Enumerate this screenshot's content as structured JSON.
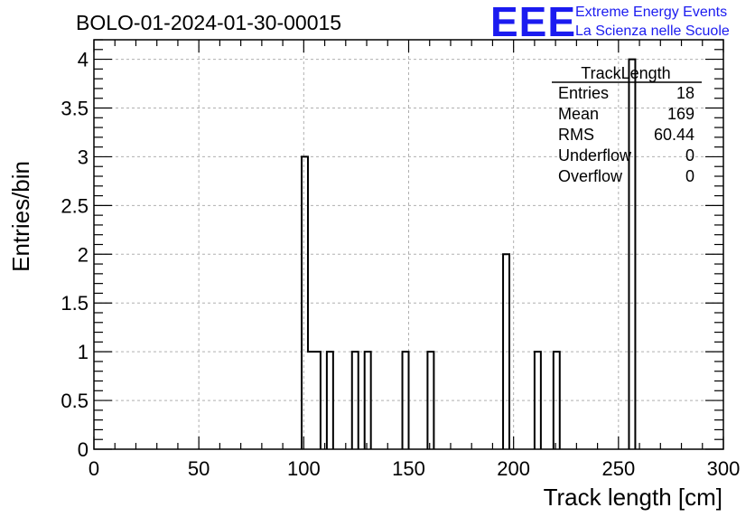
{
  "chart_data": {
    "type": "bar",
    "title": "BOLO-01-2024-01-30-00015",
    "xlabel": "Track length [cm]",
    "ylabel": "Entries/bin",
    "xlim": [
      0,
      300
    ],
    "ylim": [
      0,
      4.2
    ],
    "x_ticks": [
      "0",
      "50",
      "100",
      "150",
      "200",
      "250",
      "300"
    ],
    "y_ticks": [
      "0",
      "0.5",
      "1",
      "1.5",
      "2",
      "2.5",
      "3",
      "3.5",
      "4"
    ],
    "grid": true,
    "bin_width": 3,
    "bins": [
      {
        "x": 99,
        "value": 3
      },
      {
        "x": 102,
        "value": 1
      },
      {
        "x": 105,
        "value": 1
      },
      {
        "x": 111,
        "value": 1
      },
      {
        "x": 123,
        "value": 1
      },
      {
        "x": 129,
        "value": 1
      },
      {
        "x": 147,
        "value": 1
      },
      {
        "x": 159,
        "value": 1
      },
      {
        "x": 195,
        "value": 2
      },
      {
        "x": 210,
        "value": 1
      },
      {
        "x": 219,
        "value": 1
      },
      {
        "x": 255,
        "value": 4
      }
    ]
  },
  "stats": {
    "name": "TrackLength",
    "rows": [
      {
        "label": "Entries",
        "value": "18"
      },
      {
        "label": "Mean",
        "value": "169"
      },
      {
        "label": "RMS",
        "value": "60.44"
      },
      {
        "label": "Underflow",
        "value": "0"
      },
      {
        "label": "Overflow",
        "value": "0"
      }
    ]
  },
  "logo": {
    "mark": "EEE",
    "line1": "Extreme Energy Events",
    "line2": "La Scienza nelle Scuole",
    "color": "#1b1bf0"
  }
}
